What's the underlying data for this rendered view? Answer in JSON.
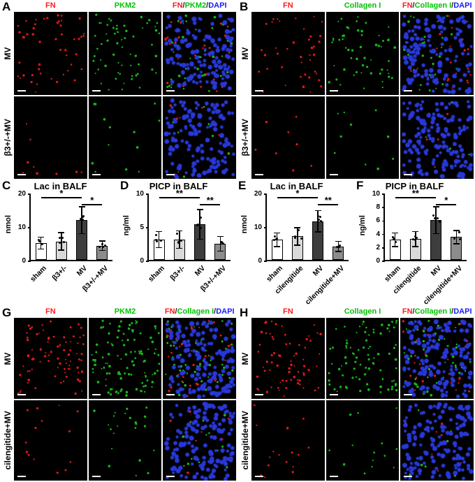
{
  "micro_panels": [
    {
      "letter": "A",
      "columns": [
        {
          "parts": [
            {
              "t": "FN",
              "c": "#ff1a1a"
            }
          ]
        },
        {
          "parts": [
            {
              "t": "PKM2",
              "c": "#00c300"
            }
          ]
        },
        {
          "parts": [
            {
              "t": "FN",
              "c": "#ff1a1a"
            },
            {
              "t": "/",
              "c": "#222222"
            },
            {
              "t": "PKM2",
              "c": "#00c300"
            },
            {
              "t": "/",
              "c": "#222222"
            },
            {
              "t": "DAPI",
              "c": "#1a1aff"
            }
          ]
        }
      ],
      "rows": [
        {
          "label": "MV",
          "tiles": [
            {
              "r": 50
            },
            {
              "g": 60
            },
            {
              "r": 32,
              "g": 38,
              "b": 130
            }
          ]
        },
        {
          "label": "β3+/-+MV",
          "tiles": [
            {
              "r": 9
            },
            {
              "g": 13
            },
            {
              "r": 6,
              "g": 8,
              "b": 140
            }
          ]
        }
      ]
    },
    {
      "letter": "B",
      "columns": [
        {
          "parts": [
            {
              "t": "FN",
              "c": "#ff1a1a"
            }
          ]
        },
        {
          "parts": [
            {
              "t": "Collagen I",
              "c": "#00c300"
            }
          ]
        },
        {
          "parts": [
            {
              "t": "FN",
              "c": "#ff1a1a"
            },
            {
              "t": "/",
              "c": "#222222"
            },
            {
              "t": "Collagen I",
              "c": "#00c300"
            },
            {
              "t": "/",
              "c": "#222222"
            },
            {
              "t": "DAPI",
              "c": "#1a1aff"
            }
          ]
        }
      ],
      "rows": [
        {
          "label": "MV",
          "tiles": [
            {
              "r": 42
            },
            {
              "g": 55
            },
            {
              "r": 28,
              "g": 32,
              "b": 135
            }
          ]
        },
        {
          "label": "β3+/-+MV",
          "tiles": [
            {
              "r": 8
            },
            {
              "g": 10
            },
            {
              "r": 5,
              "g": 6,
              "b": 150
            }
          ]
        }
      ]
    },
    {
      "letter": "G",
      "columns": [
        {
          "parts": [
            {
              "t": "FN",
              "c": "#ff1a1a"
            }
          ]
        },
        {
          "parts": [
            {
              "t": "PKM2",
              "c": "#00c300"
            }
          ]
        },
        {
          "parts": [
            {
              "t": "FN",
              "c": "#ff1a1a"
            },
            {
              "t": "/",
              "c": "#222222"
            },
            {
              "t": "Collagen I",
              "c": "#00c300"
            },
            {
              "t": "/",
              "c": "#222222"
            },
            {
              "t": "DAPI",
              "c": "#1a1aff"
            }
          ]
        }
      ],
      "rows": [
        {
          "label": "MV",
          "tiles": [
            {
              "r": 80
            },
            {
              "g": 110
            },
            {
              "r": 45,
              "g": 70,
              "b": 150
            }
          ]
        },
        {
          "label": "cilengitide+MV",
          "tiles": [
            {
              "r": 14
            },
            {
              "g": 22
            },
            {
              "r": 10,
              "g": 16,
              "b": 150
            }
          ]
        }
      ]
    },
    {
      "letter": "H",
      "columns": [
        {
          "parts": [
            {
              "t": "FN",
              "c": "#ff1a1a"
            }
          ]
        },
        {
          "parts": [
            {
              "t": "Collagen I",
              "c": "#00c300"
            }
          ]
        },
        {
          "parts": [
            {
              "t": "FN",
              "c": "#ff1a1a"
            },
            {
              "t": "/",
              "c": "#222222"
            },
            {
              "t": "Collagen I",
              "c": "#00c300"
            },
            {
              "t": "/",
              "c": "#222222"
            },
            {
              "t": "DAPI",
              "c": "#1a1aff"
            }
          ]
        }
      ],
      "rows": [
        {
          "label": "MV",
          "tiles": [
            {
              "r": 70
            },
            {
              "g": 85
            },
            {
              "r": 40,
              "g": 55,
              "b": 150
            }
          ]
        },
        {
          "label": "cilengitide+MV",
          "tiles": [
            {
              "r": 16
            },
            {
              "g": 14
            },
            {
              "r": 9,
              "g": 10,
              "b": 150
            }
          ]
        }
      ]
    }
  ],
  "chart_data": [
    {
      "letter": "C",
      "type": "bar",
      "title": "Lac in BALF",
      "ylabel": "nmol",
      "ymax": 20,
      "yticks": [
        0,
        10,
        20
      ],
      "categories": [
        "sham",
        "β3+/-",
        "MV",
        "β3+/-+MV"
      ],
      "values": [
        5.0,
        5.5,
        11.8,
        4.2
      ],
      "errors": [
        1.8,
        2.6,
        4.0,
        1.4
      ],
      "bar_colors": [
        "#ffffff",
        "#d9d9d9",
        "#3d3d3d",
        "#8c8c8c"
      ],
      "sig": [
        {
          "from": 0,
          "to": 2,
          "label": "*"
        },
        {
          "from": 2,
          "to": 3,
          "label": "*"
        }
      ]
    },
    {
      "letter": "D",
      "type": "bar",
      "title": "PICP in BALF",
      "ylabel": "ng/ml",
      "ymax": 10,
      "yticks": [
        0,
        5,
        10
      ],
      "categories": [
        "sham",
        "β3+/-",
        "MV",
        "β3+/-+MV"
      ],
      "values": [
        3.0,
        3.0,
        5.3,
        2.4
      ],
      "errors": [
        1.2,
        1.3,
        2.2,
        1.1
      ],
      "bar_colors": [
        "#ffffff",
        "#d9d9d9",
        "#3d3d3d",
        "#8c8c8c"
      ],
      "sig": [
        {
          "from": 0,
          "to": 2,
          "label": "**"
        },
        {
          "from": 2,
          "to": 3,
          "label": "**"
        }
      ]
    },
    {
      "letter": "E",
      "type": "bar",
      "title": "Lac in BALF",
      "ylabel": "nmol",
      "ymax": 20,
      "yticks": [
        0,
        10,
        20
      ],
      "categories": [
        "sham",
        "cilengitide",
        "MV",
        "cilengitide+MV"
      ],
      "values": [
        6.0,
        7.0,
        11.5,
        4.0
      ],
      "errors": [
        2.0,
        2.6,
        3.2,
        1.5
      ],
      "bar_colors": [
        "#ffffff",
        "#d9d9d9",
        "#3d3d3d",
        "#8c8c8c"
      ],
      "sig": [
        {
          "from": 0,
          "to": 2,
          "label": "*"
        },
        {
          "from": 2,
          "to": 3,
          "label": "**"
        }
      ]
    },
    {
      "letter": "F",
      "type": "bar",
      "title": "PICP in BALF",
      "ylabel": "ng/ml",
      "ymax": 10,
      "yticks": [
        0,
        2,
        4,
        6,
        8,
        10
      ],
      "categories": [
        "sham",
        "cilengitide",
        "MV",
        "cilengitide+MV"
      ],
      "values": [
        3.0,
        3.1,
        5.9,
        3.4
      ],
      "errors": [
        1.0,
        1.1,
        2.0,
        1.0
      ],
      "bar_colors": [
        "#ffffff",
        "#d9d9d9",
        "#3d3d3d",
        "#8c8c8c"
      ],
      "sig": [
        {
          "from": 0,
          "to": 2,
          "label": "**"
        },
        {
          "from": 2,
          "to": 3,
          "label": "*"
        }
      ]
    }
  ]
}
